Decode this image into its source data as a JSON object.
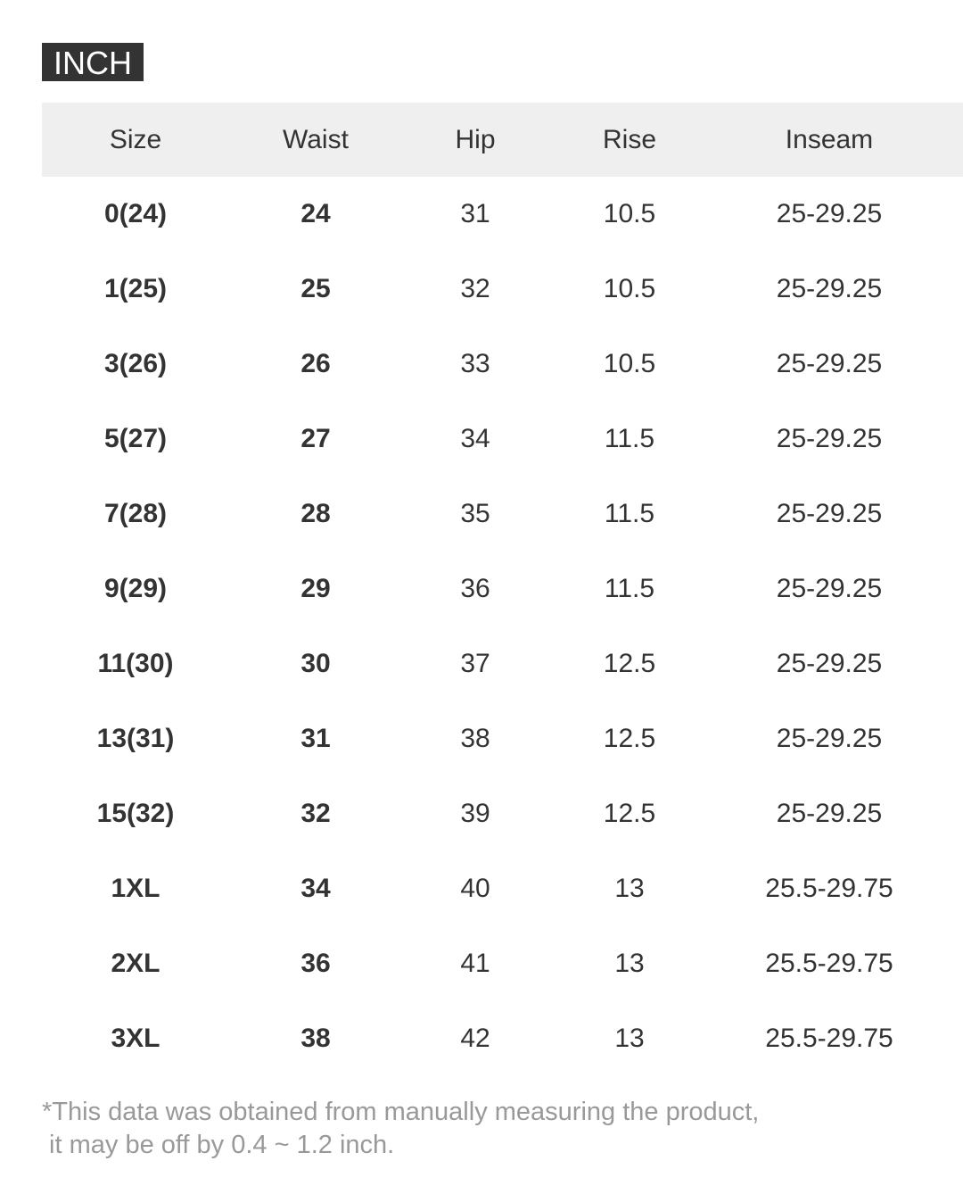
{
  "unit_label": "INCH",
  "headers": [
    "Size",
    "Waist",
    "Hip",
    "Rise",
    "Inseam"
  ],
  "rows": [
    [
      "0(24)",
      "24",
      "31",
      "10.5",
      "25-29.25"
    ],
    [
      "1(25)",
      "25",
      "32",
      "10.5",
      "25-29.25"
    ],
    [
      "3(26)",
      "26",
      "33",
      "10.5",
      "25-29.25"
    ],
    [
      "5(27)",
      "27",
      "34",
      "11.5",
      "25-29.25"
    ],
    [
      "7(28)",
      "28",
      "35",
      "11.5",
      "25-29.25"
    ],
    [
      "9(29)",
      "29",
      "36",
      "11.5",
      "25-29.25"
    ],
    [
      "11(30)",
      "30",
      "37",
      "12.5",
      "25-29.25"
    ],
    [
      "13(31)",
      "31",
      "38",
      "12.5",
      "25-29.25"
    ],
    [
      "15(32)",
      "32",
      "39",
      "12.5",
      "25-29.25"
    ],
    [
      "1XL",
      "34",
      "40",
      "13",
      "25.5-29.75"
    ],
    [
      "2XL",
      "36",
      "41",
      "13",
      "25.5-29.75"
    ],
    [
      "3XL",
      "38",
      "42",
      "13",
      "25.5-29.75"
    ]
  ],
  "note": {
    "line1": "*This data was obtained from manually measuring the product,",
    "line2": " it may be off by 0.4 ~ 1.2 inch."
  }
}
